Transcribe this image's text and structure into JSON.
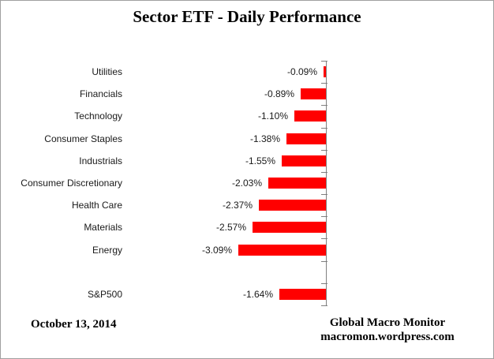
{
  "title": "Sector ETF - Daily Performance",
  "footer": {
    "date": "October 13, 2014",
    "source_line1": "Global Macro Monitor",
    "source_line2": "macromon.wordpress.com"
  },
  "colors": {
    "bar": "#FF0000",
    "axis": "#808080",
    "frame": "#A0A0A0"
  },
  "chart_data": {
    "type": "bar",
    "orientation": "horizontal",
    "title": "Sector ETF - Daily Performance",
    "categories": [
      "Utilities",
      "Financials",
      "Technology",
      "Consumer Staples",
      "Industrials",
      "Consumer Discretionary",
      "Health Care",
      "Materials",
      "Energy",
      "",
      "S&P500"
    ],
    "values": [
      -0.09,
      -0.89,
      -1.1,
      -1.38,
      -1.55,
      -2.03,
      -2.37,
      -2.57,
      -3.09,
      null,
      -1.64
    ],
    "data_labels": [
      "-0.09%",
      "-0.89%",
      "-1.10%",
      "-1.38%",
      "-1.55%",
      "-2.03%",
      "-2.37%",
      "-2.57%",
      "-3.09%",
      "",
      "-1.64%"
    ],
    "xlim": [
      -3.5,
      0
    ],
    "grid": false,
    "legend": false,
    "data_label_position": "outside-end",
    "bar_color": "#FF0000",
    "axis_color": "#808080"
  }
}
